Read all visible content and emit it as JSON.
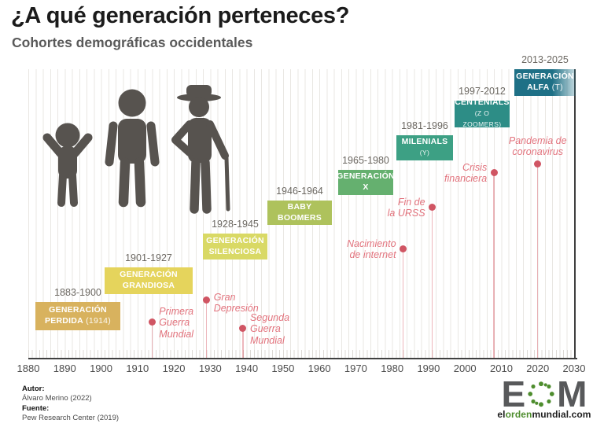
{
  "header": {
    "title": "¿A qué generación perteneces?",
    "subtitle": "Cohortes demográficas occidentales"
  },
  "chart_data": {
    "type": "timeline",
    "title": "¿A qué generación perteneces?",
    "subtitle": "Cohortes demográficas occidentales",
    "x_axis": {
      "range": [
        1880,
        2030
      ],
      "tick_step": 10,
      "ticks": [
        1880,
        1890,
        1900,
        1910,
        1920,
        1930,
        1940,
        1950,
        1960,
        1970,
        1980,
        1990,
        2000,
        2010,
        2020,
        2030
      ],
      "grid": "on"
    },
    "generations": [
      {
        "years_label": "1883-1900",
        "start": 1883,
        "end": 1900,
        "line1": "GENERACIÓN",
        "line2": "PERDIDA",
        "line2_suffix": " (1914)",
        "color": "#d8b25e"
      },
      {
        "years_label": "1901-1927",
        "start": 1901,
        "end": 1927,
        "line1": "GENERACIÓN",
        "line2": "GRANDIOSA",
        "color": "#e5d45c"
      },
      {
        "years_label": "1928-1945",
        "start": 1928,
        "end": 1945,
        "line1": "GENERACIÓN",
        "line2": "SILENCIOSA",
        "color": "#d9d965"
      },
      {
        "years_label": "1946-1964",
        "start": 1946,
        "end": 1964,
        "line1": "BABY",
        "line2": "BOOMERS",
        "color": "#aec25c"
      },
      {
        "years_label": "1965-1980",
        "start": 1965,
        "end": 1980,
        "line1": "GENERACIÓN",
        "line2": "X",
        "color": "#65b06f"
      },
      {
        "years_label": "1981-1996",
        "start": 1981,
        "end": 1996,
        "line1": "MILENIALS",
        "line2_sub": "(Y)",
        "color": "#3da084"
      },
      {
        "years_label": "1997-2012",
        "start": 1997,
        "end": 2012,
        "line1": "CENTENIALS",
        "line2_sub": "(Z O ZOOMERS)",
        "color": "#2d8d86"
      },
      {
        "years_label": "2013-2025",
        "start": 2013,
        "end": 2025,
        "line1": "GENERACIÓN",
        "line2": "ALFA",
        "line2_suffix": " (T)",
        "color": "#1e7086",
        "fade_right": true
      }
    ],
    "events": [
      {
        "year": 1914,
        "lines": [
          "Primera",
          "Guerra",
          "Mundial"
        ]
      },
      {
        "year": 1929,
        "lines": [
          "Gran",
          "Depresión"
        ]
      },
      {
        "year": 1939,
        "lines": [
          "Segunda",
          "Guerra",
          "Mundial"
        ]
      },
      {
        "year": 1983,
        "lines": [
          "Nacimiento",
          "de internet"
        ]
      },
      {
        "year": 1991,
        "lines": [
          "Fin de",
          "la URSS"
        ]
      },
      {
        "year": 2008,
        "lines": [
          "Crisis",
          "financiera"
        ]
      },
      {
        "year": 2020,
        "lines": [
          "Pandemia de",
          "coronavirus"
        ]
      }
    ],
    "colors": {
      "event_dot": "#d05563",
      "event_stem": "rgba(214,96,107,0.45)",
      "event_label": "#e2737d",
      "axis": "#3f3f3f",
      "grid": "#e9e7e3",
      "year_label": "#6c6862",
      "people_icon": "#57534f"
    }
  },
  "icons": {
    "people": [
      {
        "name": "child-icon"
      },
      {
        "name": "adult-icon"
      },
      {
        "name": "elderly-icon"
      }
    ],
    "logo_o": "green-dotted-circle"
  },
  "footer": {
    "author_label": "Autor:",
    "author": "Álvaro Merino (2022)",
    "source_label": "Fuente:",
    "source": "Pew Research Center (2019)"
  },
  "logo": {
    "letter_e": "E",
    "letter_m": "M",
    "domain_part1": "el",
    "domain_part2": "orden",
    "domain_part3": "mundial.com",
    "letter_color": "#58595b",
    "accent_green": "#4e8d2e",
    "domain_dark": "#1f1f1f"
  }
}
